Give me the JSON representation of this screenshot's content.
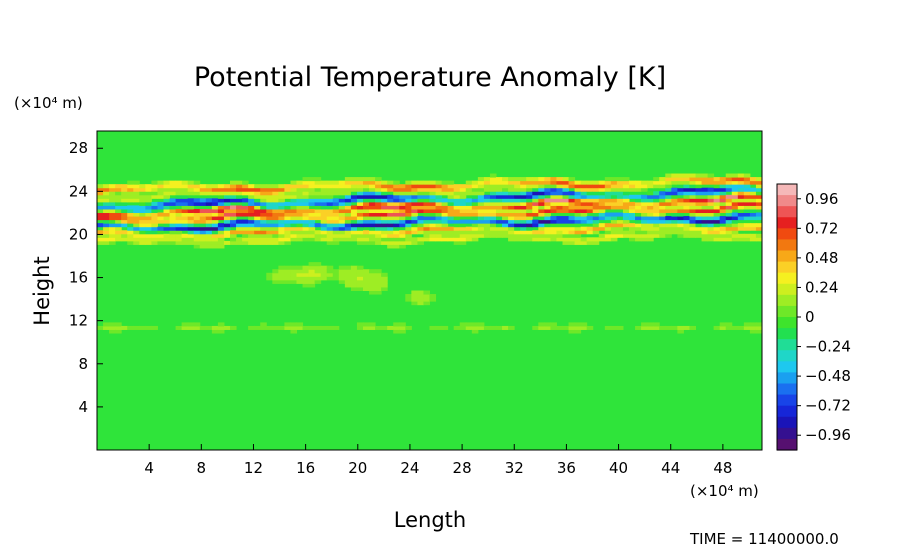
{
  "chart_data": {
    "type": "heatmap",
    "title": "Potential Temperature Anomaly [K]",
    "xlabel": "Length",
    "ylabel": "Height",
    "x_unit": "(×10⁴ m)",
    "y_unit": "(×10⁴ m)",
    "x_ticks": [
      "4",
      "8",
      "12",
      "16",
      "20",
      "24",
      "28",
      "32",
      "36",
      "40",
      "44",
      "48"
    ],
    "y_ticks": [
      "4",
      "8",
      "12",
      "16",
      "20",
      "24",
      "28"
    ],
    "xlim": [
      0,
      51
    ],
    "ylim": [
      0,
      29.6
    ],
    "colorbar": {
      "labels": [
        "0.96",
        "0.72",
        "0.48",
        "0.24",
        "0",
        "−0.24",
        "−0.48",
        "−0.72",
        "−0.96"
      ],
      "range": [
        -1.08,
        1.08
      ],
      "colors": [
        "#f5b8b8",
        "#f08a8a",
        "#ee5555",
        "#e62020",
        "#f04a10",
        "#f27810",
        "#f7a818",
        "#fbd026",
        "#f5f020",
        "#cdef1f",
        "#9eed24",
        "#6ee828",
        "#3ee42c",
        "#22e050",
        "#20dd96",
        "#1fd6c8",
        "#1ec8ef",
        "#1aa0f0",
        "#1a70f0",
        "#1844e8",
        "#1626d8",
        "#1a14b8",
        "#341090",
        "#561070"
      ]
    },
    "field_description": "Background near zero; strong alternating positive/negative anomaly layers between ~19 and ~24 (×10⁴ m), tilting upward from left to right; weak positive eddies near 16-18 at x 14-22."
  },
  "footer": {
    "time_label": "TIME = 11400000.0"
  }
}
